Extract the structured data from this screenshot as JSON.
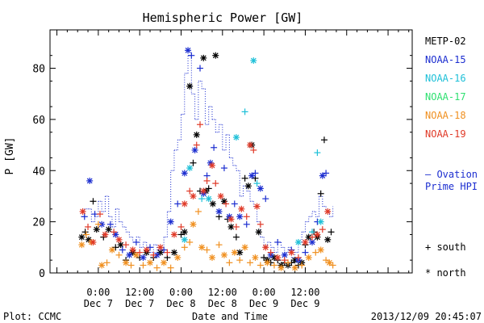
{
  "chart_data": {
    "type": "scatter",
    "title": "Hemispheric Power [GW]",
    "xlabel": "Date and Time",
    "ylabel": "P [GW]",
    "xlim_hours": [
      -14,
      91
    ],
    "ylim": [
      0,
      95
    ],
    "yticks": [
      0,
      20,
      40,
      60,
      80
    ],
    "xticks": [
      {
        "hour": 0,
        "line1": "0:00",
        "line2": "Dec 7"
      },
      {
        "hour": 12,
        "line1": "12:00",
        "line2": "Dec 7"
      },
      {
        "hour": 24,
        "line1": "0:00",
        "line2": "Dec 8"
      },
      {
        "hour": 36,
        "line1": "12:00",
        "line2": "Dec 8"
      },
      {
        "hour": 48,
        "line1": "0:00",
        "line2": "Dec 9"
      },
      {
        "hour": 60,
        "line1": "12:00",
        "line2": "Dec 9"
      }
    ],
    "footer_left": "Plot: CCMC",
    "footer_right": "2013/12/09 20:45:07",
    "legend": {
      "position": "right",
      "ovation_label_1": "— Ovation",
      "ovation_label_2": "Prime HPI",
      "south_label": "+ south",
      "north_label": "* north"
    },
    "series": [
      {
        "name": "METP-02",
        "color": "#000000",
        "points": [
          [
            -4.8,
            14,
            "n"
          ],
          [
            -3.8,
            16,
            "s"
          ],
          [
            -2.8,
            13,
            "n"
          ],
          [
            -1.5,
            28,
            "s"
          ],
          [
            -0.5,
            17,
            "n"
          ],
          [
            1.5,
            14,
            "s"
          ],
          [
            3,
            17,
            "n"
          ],
          [
            5,
            10,
            "s"
          ],
          [
            6.5,
            11,
            "n"
          ],
          [
            8,
            5,
            "s"
          ],
          [
            10,
            8,
            "n"
          ],
          [
            12,
            6,
            "s"
          ],
          [
            14,
            8,
            "n"
          ],
          [
            16,
            6,
            "s"
          ],
          [
            18,
            8,
            "n"
          ],
          [
            20,
            6,
            "s"
          ],
          [
            22,
            8,
            "n"
          ],
          [
            24,
            15,
            "s"
          ],
          [
            25,
            16,
            "n"
          ],
          [
            26.5,
            73,
            "n"
          ],
          [
            27.5,
            43,
            "s"
          ],
          [
            28.5,
            54,
            "n"
          ],
          [
            29.5,
            32,
            "s"
          ],
          [
            30.5,
            84,
            "n"
          ],
          [
            31.2,
            32,
            "n"
          ],
          [
            32,
            33,
            "s"
          ],
          [
            33.2,
            27,
            "n"
          ],
          [
            34,
            85,
            "n"
          ],
          [
            35,
            22,
            "s"
          ],
          [
            36.5,
            28,
            "n"
          ],
          [
            37.5,
            21,
            "s"
          ],
          [
            38.5,
            18,
            "n"
          ],
          [
            40,
            14,
            "s"
          ],
          [
            41,
            8,
            "n"
          ],
          [
            42.5,
            37,
            "s"
          ],
          [
            43.5,
            34,
            "n"
          ],
          [
            44.5,
            50,
            "n"
          ],
          [
            45.5,
            37,
            "s"
          ],
          [
            46.5,
            16,
            "n"
          ],
          [
            48,
            6,
            "s"
          ],
          [
            49,
            5,
            "n"
          ],
          [
            50,
            4,
            "s"
          ],
          [
            51,
            6,
            "n"
          ],
          [
            52,
            5,
            "s"
          ],
          [
            53,
            3,
            "n"
          ],
          [
            54,
            4,
            "s"
          ],
          [
            55,
            3,
            "n"
          ],
          [
            56,
            4,
            "s"
          ],
          [
            57,
            5,
            "n"
          ],
          [
            58,
            3,
            "s"
          ],
          [
            59,
            4,
            "n"
          ],
          [
            60,
            11,
            "s"
          ],
          [
            61,
            14,
            "n"
          ],
          [
            62.5,
            16,
            "s"
          ],
          [
            63.5,
            14,
            "n"
          ],
          [
            64.5,
            31,
            "s"
          ],
          [
            65.5,
            52,
            "s"
          ],
          [
            66.5,
            13,
            "n"
          ],
          [
            67.5,
            16,
            "s"
          ]
        ]
      },
      {
        "name": "NOAA-15",
        "color": "#1c2ed0",
        "points": [
          [
            -4,
            22,
            "s"
          ],
          [
            -2.5,
            36,
            "n"
          ],
          [
            -1,
            23,
            "s"
          ],
          [
            1,
            19,
            "n"
          ],
          [
            3.5,
            19,
            "s"
          ],
          [
            5,
            15,
            "n"
          ],
          [
            7,
            9,
            "s"
          ],
          [
            9,
            7,
            "n"
          ],
          [
            11,
            12,
            "s"
          ],
          [
            13,
            6,
            "n"
          ],
          [
            15,
            10,
            "s"
          ],
          [
            17,
            7,
            "n"
          ],
          [
            19,
            9,
            "s"
          ],
          [
            21,
            20,
            "n"
          ],
          [
            23,
            27,
            "s"
          ],
          [
            25,
            39,
            "n"
          ],
          [
            26,
            87,
            "n"
          ],
          [
            27,
            85,
            "s"
          ],
          [
            28,
            48,
            "n"
          ],
          [
            29.5,
            80,
            "s"
          ],
          [
            30.5,
            31,
            "n"
          ],
          [
            31.5,
            38,
            "s"
          ],
          [
            32.5,
            43,
            "n"
          ],
          [
            33.5,
            49,
            "s"
          ],
          [
            35,
            24,
            "n"
          ],
          [
            36.5,
            41,
            "s"
          ],
          [
            38,
            22,
            "n"
          ],
          [
            39.5,
            27,
            "s"
          ],
          [
            41,
            22,
            "n"
          ],
          [
            43,
            19,
            "s"
          ],
          [
            44.5,
            38,
            "n"
          ],
          [
            45.5,
            39,
            "s"
          ],
          [
            47,
            33,
            "n"
          ],
          [
            48.5,
            29,
            "s"
          ],
          [
            50,
            7,
            "n"
          ],
          [
            52,
            12,
            "s"
          ],
          [
            54,
            7,
            "n"
          ],
          [
            56,
            9,
            "s"
          ],
          [
            58,
            5,
            "n"
          ],
          [
            60,
            8,
            "s"
          ],
          [
            62,
            12,
            "n"
          ],
          [
            63.5,
            20,
            "s"
          ],
          [
            65,
            38,
            "n"
          ],
          [
            66,
            39,
            "s"
          ]
        ]
      },
      {
        "name": "NOAA-16",
        "color": "#1ec0d8",
        "points": [
          [
            25,
            13,
            "n"
          ],
          [
            26.5,
            41,
            "n"
          ],
          [
            30,
            29,
            "s"
          ],
          [
            32,
            29,
            "n"
          ],
          [
            40,
            53,
            "n"
          ],
          [
            42.5,
            63,
            "s"
          ],
          [
            45,
            83,
            "n"
          ],
          [
            46,
            35,
            "s"
          ],
          [
            58,
            12,
            "n"
          ],
          [
            62,
            16,
            "s"
          ],
          [
            63.5,
            47,
            "s"
          ],
          [
            64.5,
            20,
            "n"
          ]
        ]
      },
      {
        "name": "NOAA-18",
        "color": "#f09020",
        "points": [
          [
            -4.8,
            11,
            "n"
          ],
          [
            -3.5,
            15,
            "s"
          ],
          [
            -2,
            12,
            "n"
          ],
          [
            0,
            19,
            "s"
          ],
          [
            1,
            3,
            "n"
          ],
          [
            2.5,
            4,
            "s"
          ],
          [
            4,
            9,
            "n"
          ],
          [
            6,
            7,
            "s"
          ],
          [
            8,
            4,
            "n"
          ],
          [
            9.5,
            3,
            "s"
          ],
          [
            11,
            7,
            "n"
          ],
          [
            13,
            3,
            "s"
          ],
          [
            15,
            4,
            "n"
          ],
          [
            17,
            2,
            "s"
          ],
          [
            19,
            4,
            "n"
          ],
          [
            21,
            2,
            "s"
          ],
          [
            23,
            6,
            "n"
          ],
          [
            25,
            10,
            "s"
          ],
          [
            26.5,
            12,
            "s"
          ],
          [
            27.5,
            19,
            "n"
          ],
          [
            29,
            24,
            "s"
          ],
          [
            30,
            10,
            "n"
          ],
          [
            31.5,
            9,
            "s"
          ],
          [
            33,
            6,
            "n"
          ],
          [
            35,
            11,
            "s"
          ],
          [
            36.5,
            7,
            "n"
          ],
          [
            38,
            4,
            "s"
          ],
          [
            39.5,
            8,
            "n"
          ],
          [
            41,
            5,
            "s"
          ],
          [
            42.5,
            10,
            "n"
          ],
          [
            44,
            4,
            "s"
          ],
          [
            45.5,
            6,
            "n"
          ],
          [
            47,
            3,
            "s"
          ],
          [
            49,
            4,
            "n"
          ],
          [
            51,
            3,
            "s"
          ],
          [
            53,
            2,
            "n"
          ],
          [
            55,
            4,
            "s"
          ],
          [
            57,
            2,
            "n"
          ],
          [
            59,
            3,
            "s"
          ],
          [
            61,
            6,
            "n"
          ],
          [
            63,
            8,
            "s"
          ],
          [
            64.5,
            9,
            "n"
          ],
          [
            66,
            5,
            "s"
          ],
          [
            67,
            4,
            "n"
          ],
          [
            68,
            3,
            "s"
          ]
        ]
      },
      {
        "name": "NOAA-19",
        "color": "#e03a28",
        "points": [
          [
            -4.5,
            24,
            "n"
          ],
          [
            -3,
            18,
            "s"
          ],
          [
            -1.5,
            12,
            "n"
          ],
          [
            0.5,
            23,
            "s"
          ],
          [
            2,
            15,
            "n"
          ],
          [
            4.5,
            16,
            "s"
          ],
          [
            6,
            13,
            "n"
          ],
          [
            8,
            11,
            "s"
          ],
          [
            10,
            9,
            "n"
          ],
          [
            12,
            8,
            "s"
          ],
          [
            14,
            9,
            "n"
          ],
          [
            16,
            7,
            "s"
          ],
          [
            18,
            10,
            "n"
          ],
          [
            20,
            8,
            "s"
          ],
          [
            22,
            15,
            "n"
          ],
          [
            24,
            18,
            "s"
          ],
          [
            25,
            27,
            "n"
          ],
          [
            26.5,
            32,
            "s"
          ],
          [
            27.5,
            30,
            "n"
          ],
          [
            28.5,
            50,
            "s"
          ],
          [
            29.5,
            58,
            "s"
          ],
          [
            30.5,
            32,
            "n"
          ],
          [
            31.5,
            36,
            "s"
          ],
          [
            33,
            42,
            "n"
          ],
          [
            34,
            35,
            "s"
          ],
          [
            35.5,
            30,
            "n"
          ],
          [
            37,
            27,
            "s"
          ],
          [
            38.5,
            21,
            "n"
          ],
          [
            40,
            18,
            "s"
          ],
          [
            41.5,
            25,
            "n"
          ],
          [
            43,
            22,
            "s"
          ],
          [
            44,
            50,
            "n"
          ],
          [
            45,
            48,
            "s"
          ],
          [
            46,
            26,
            "n"
          ],
          [
            47,
            19,
            "s"
          ],
          [
            48.5,
            10,
            "n"
          ],
          [
            50,
            8,
            "s"
          ],
          [
            52,
            6,
            "n"
          ],
          [
            54,
            5,
            "s"
          ],
          [
            56,
            8,
            "n"
          ],
          [
            58,
            6,
            "s"
          ],
          [
            60,
            12,
            "n"
          ],
          [
            62,
            14,
            "s"
          ],
          [
            63.5,
            15,
            "n"
          ],
          [
            65,
            17,
            "s"
          ],
          [
            66.5,
            24,
            "n"
          ]
        ]
      }
    ],
    "ovation_hpi": {
      "name": "Ovation Prime HPI",
      "color": "#1c2ed0",
      "x": [
        -5,
        -4,
        -3,
        -2,
        -1,
        0,
        1,
        2,
        3,
        4,
        5,
        6,
        7,
        8,
        9,
        10,
        11,
        12,
        13,
        14,
        15,
        16,
        17,
        18,
        19,
        20,
        21,
        22,
        23,
        24,
        25,
        26,
        27,
        28,
        29,
        30,
        31,
        32,
        33,
        34,
        35,
        36,
        37,
        38,
        39,
        40,
        41,
        42,
        43,
        44,
        45,
        46,
        47,
        48,
        49,
        50,
        51,
        52,
        53,
        54,
        55,
        56,
        57,
        58,
        59,
        60,
        61,
        62,
        63,
        64,
        65,
        66,
        67,
        68
      ],
      "y": [
        22,
        25,
        25,
        20,
        22,
        28,
        24,
        30,
        22,
        18,
        25,
        20,
        18,
        16,
        14,
        12,
        14,
        10,
        12,
        9,
        8,
        11,
        9,
        8,
        14,
        24,
        40,
        48,
        52,
        62,
        78,
        85,
        70,
        60,
        75,
        72,
        58,
        65,
        60,
        55,
        58,
        48,
        54,
        45,
        42,
        40,
        30,
        34,
        32,
        28,
        26,
        20,
        14,
        10,
        12,
        10,
        8,
        12,
        10,
        8,
        10,
        6,
        8,
        12,
        16,
        20,
        22,
        24,
        22,
        30,
        26,
        24,
        22,
        26
      ]
    }
  }
}
